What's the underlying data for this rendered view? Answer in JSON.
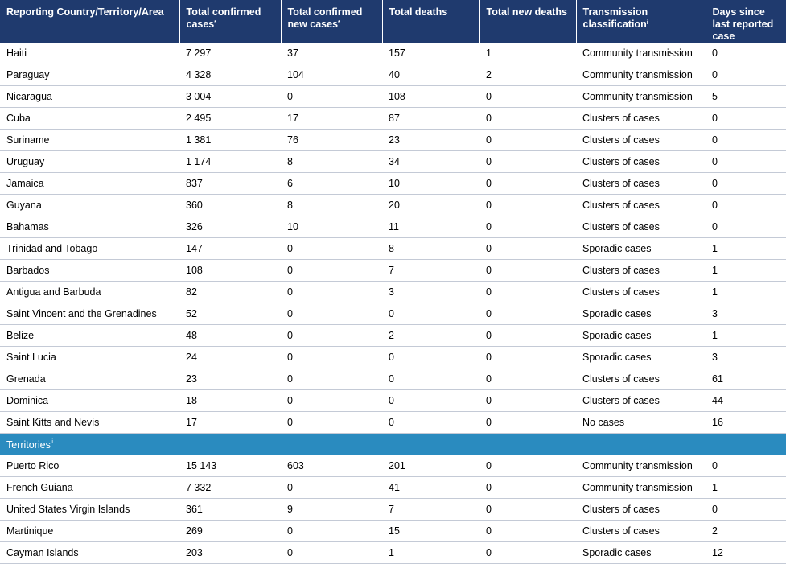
{
  "headers": {
    "country": "Reporting Country/Territory/Area",
    "cases": "Total confirmed cases",
    "cases_sup": "*",
    "new_cases": "Total confirmed new cases",
    "new_cases_sup": "*",
    "deaths": "Total deaths",
    "new_deaths": "Total new deaths",
    "transmission": "Transmission classification",
    "transmission_sup": "i",
    "days": "Days since last reported case"
  },
  "countries": [
    [
      "Haiti",
      "7 297",
      "37",
      "157",
      "1",
      "Community transmission",
      "0"
    ],
    [
      "Paraguay",
      "4 328",
      "104",
      "40",
      "2",
      "Community transmission",
      "0"
    ],
    [
      "Nicaragua",
      "3 004",
      "0",
      "108",
      "0",
      "Community transmission",
      "5"
    ],
    [
      "Cuba",
      "2 495",
      "17",
      "87",
      "0",
      "Clusters of cases",
      "0"
    ],
    [
      "Suriname",
      "1 381",
      "76",
      "23",
      "0",
      "Clusters of cases",
      "0"
    ],
    [
      "Uruguay",
      "1 174",
      "8",
      "34",
      "0",
      "Clusters of cases",
      "0"
    ],
    [
      "Jamaica",
      "837",
      "6",
      "10",
      "0",
      "Clusters of cases",
      "0"
    ],
    [
      "Guyana",
      "360",
      "8",
      "20",
      "0",
      "Clusters of cases",
      "0"
    ],
    [
      "Bahamas",
      "326",
      "10",
      "11",
      "0",
      "Clusters of cases",
      "0"
    ],
    [
      "Trinidad and Tobago",
      "147",
      "0",
      "8",
      "0",
      "Sporadic cases",
      "1"
    ],
    [
      "Barbados",
      "108",
      "0",
      "7",
      "0",
      "Clusters of cases",
      "1"
    ],
    [
      "Antigua and Barbuda",
      "82",
      "0",
      "3",
      "0",
      "Clusters of cases",
      "1"
    ],
    [
      "Saint Vincent and the Grenadines",
      "52",
      "0",
      "0",
      "0",
      "Sporadic cases",
      "3"
    ],
    [
      "Belize",
      "48",
      "0",
      "2",
      "0",
      "Sporadic cases",
      "1"
    ],
    [
      "Saint Lucia",
      "24",
      "0",
      "0",
      "0",
      "Sporadic cases",
      "3"
    ],
    [
      "Grenada",
      "23",
      "0",
      "0",
      "0",
      "Clusters of cases",
      "61"
    ],
    [
      "Dominica",
      "18",
      "0",
      "0",
      "0",
      "Clusters of cases",
      "44"
    ],
    [
      "Saint Kitts and Nevis",
      "17",
      "0",
      "0",
      "0",
      "No cases",
      "16"
    ]
  ],
  "section": {
    "label": "Territories",
    "sup": "ii"
  },
  "territories": [
    [
      "Puerto Rico",
      "15 143",
      "603",
      "201",
      "0",
      "Community transmission",
      "0"
    ],
    [
      "French Guiana",
      "7 332",
      "0",
      "41",
      "0",
      "Community transmission",
      "1"
    ],
    [
      "United States Virgin Islands",
      "361",
      "9",
      "7",
      "0",
      "Clusters of cases",
      "0"
    ],
    [
      "Martinique",
      "269",
      "0",
      "15",
      "0",
      "Clusters of cases",
      "2"
    ],
    [
      "Cayman Islands",
      "203",
      "0",
      "1",
      "0",
      "Sporadic cases",
      "12"
    ]
  ]
}
